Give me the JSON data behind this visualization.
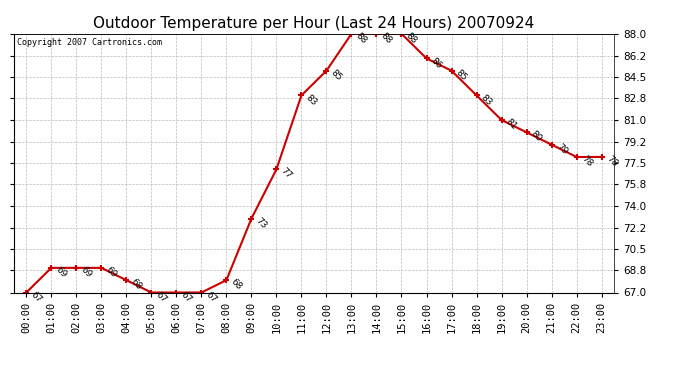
{
  "title": "Outdoor Temperature per Hour (Last 24 Hours) 20070924",
  "copyright": "Copyright 2007 Cartronics.com",
  "hours": [
    "00:00",
    "01:00",
    "02:00",
    "03:00",
    "04:00",
    "05:00",
    "06:00",
    "07:00",
    "08:00",
    "09:00",
    "10:00",
    "11:00",
    "12:00",
    "13:00",
    "14:00",
    "15:00",
    "16:00",
    "17:00",
    "18:00",
    "19:00",
    "20:00",
    "21:00",
    "22:00",
    "23:00"
  ],
  "temps": [
    67,
    69,
    69,
    69,
    68,
    67,
    67,
    67,
    68,
    73,
    77,
    83,
    85,
    88,
    88,
    88,
    86,
    85,
    83,
    81,
    80,
    79,
    78,
    78
  ],
  "ylim_min": 67.0,
  "ylim_max": 88.0,
  "yticks": [
    67.0,
    68.8,
    70.5,
    72.2,
    74.0,
    75.8,
    77.5,
    79.2,
    81.0,
    82.8,
    84.5,
    86.2,
    88.0
  ],
  "line_color": "#cc0000",
  "marker_color": "#cc0000",
  "bg_color": "#ffffff",
  "grid_color": "#bbbbbb",
  "title_fontsize": 11,
  "tick_label_fontsize": 7.5,
  "annotation_fontsize": 6.5
}
